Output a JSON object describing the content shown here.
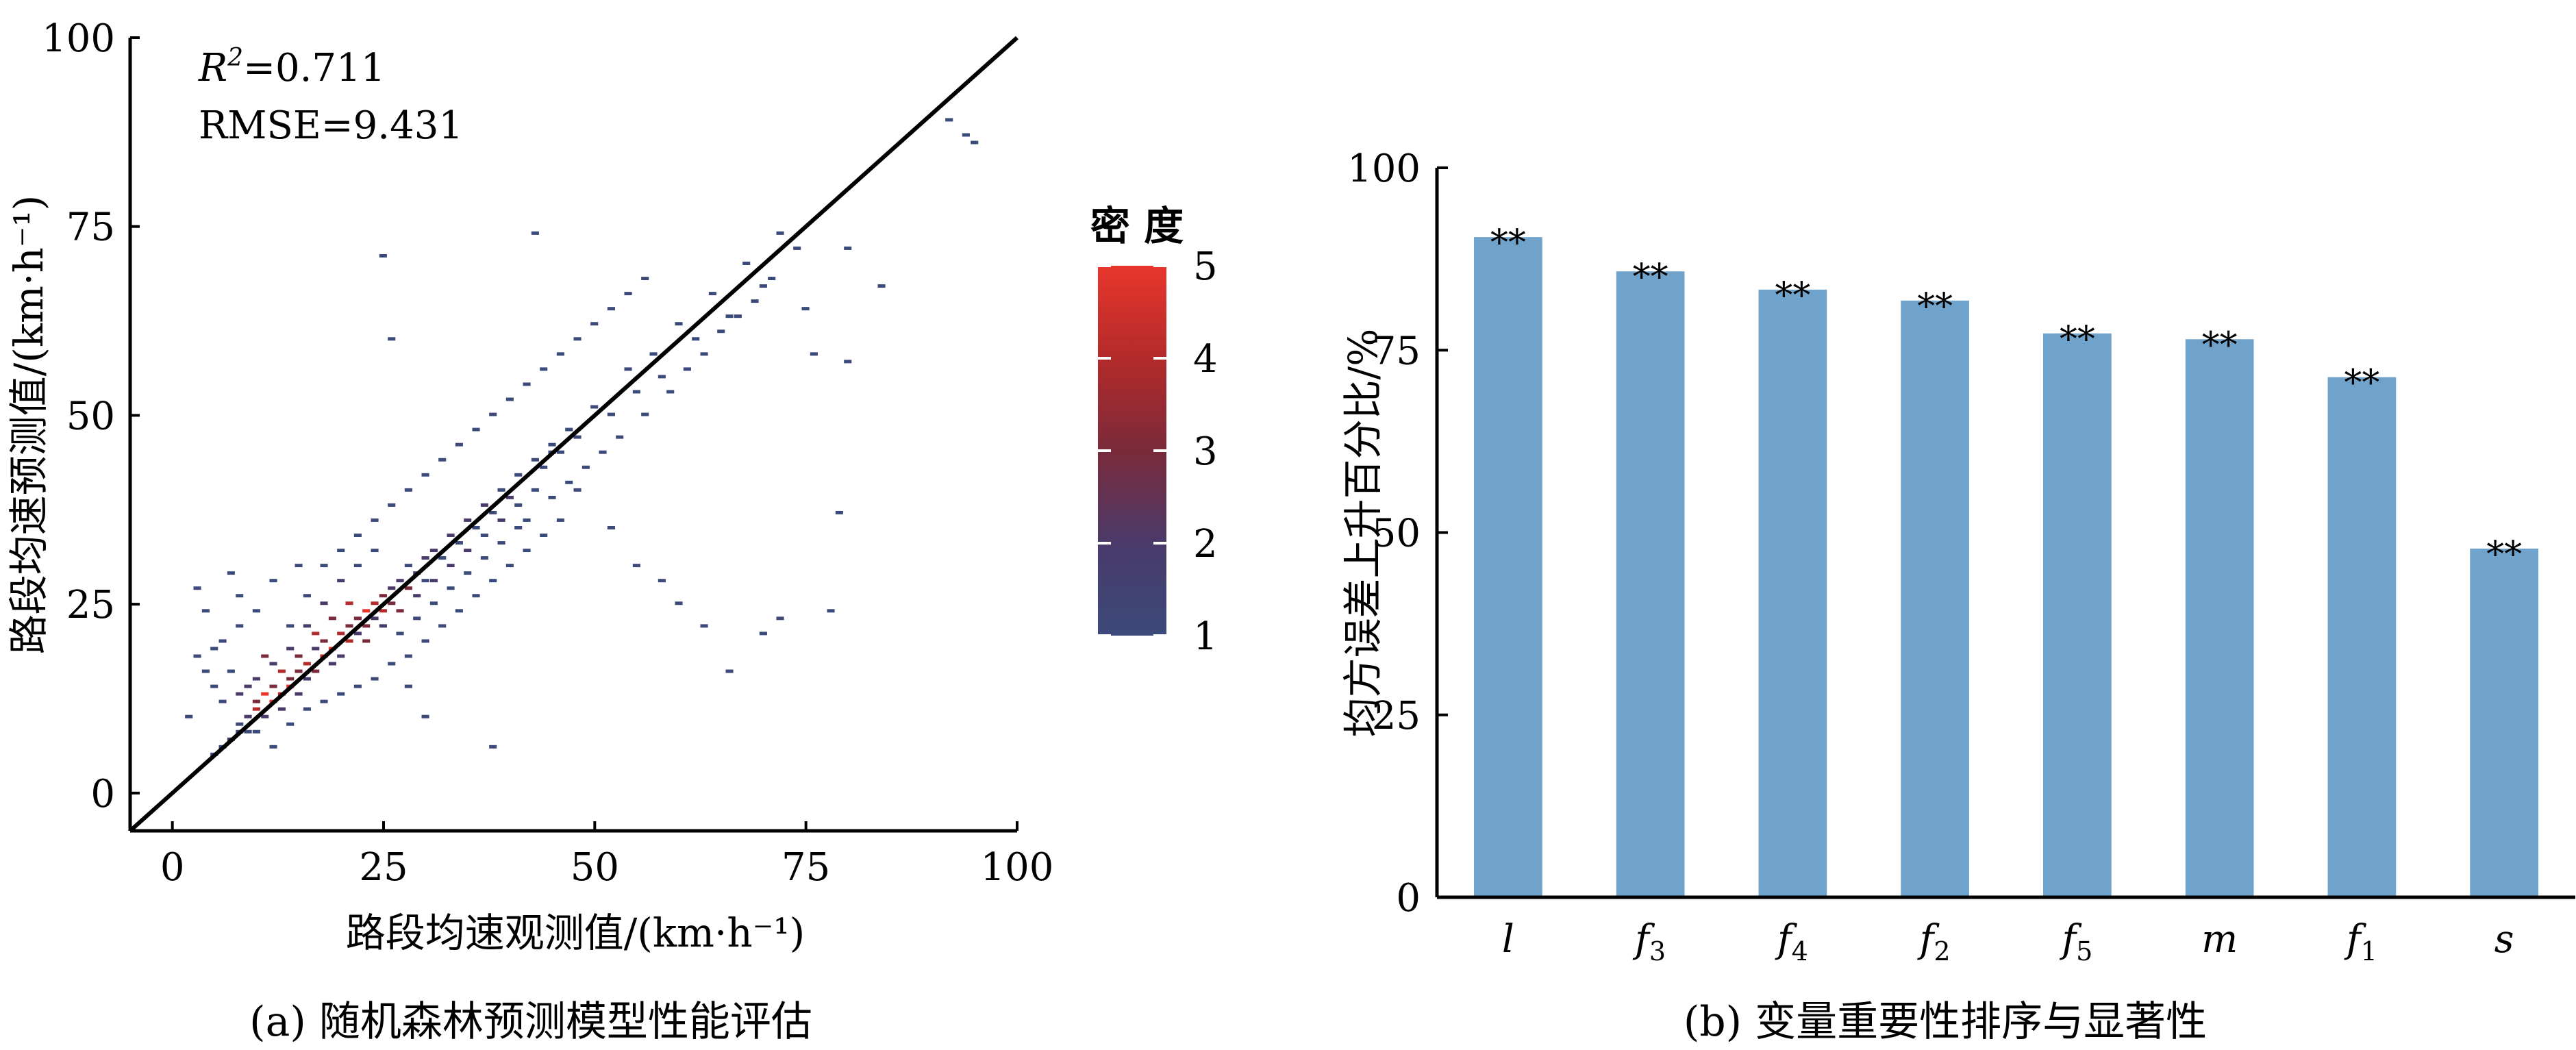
{
  "chart_data": [
    {
      "panel": "a",
      "type": "heatmap",
      "caption": "(a) 随机森林预测模型性能评估",
      "xlabel": "路段均速观测值/(km·h⁻¹)",
      "ylabel": "路段均速预测值/(km·h⁻¹)",
      "xlim": [
        -5,
        100
      ],
      "ylim": [
        -5,
        100
      ],
      "xticks": [
        "0",
        "25",
        "50",
        "75",
        "100"
      ],
      "yticks": [
        "0",
        "25",
        "50",
        "75",
        "100"
      ],
      "reference_line": {
        "from": [
          -5,
          -5
        ],
        "to": [
          100,
          100
        ]
      },
      "annotations": {
        "r2": "R²=0.711",
        "rmse": "RMSE=9.431"
      },
      "colorbar": {
        "title": "密 度",
        "range": [
          1,
          5
        ],
        "ticks": [
          "1",
          "2",
          "3",
          "4",
          "5"
        ],
        "colors": [
          "#3b4a7a",
          "#4a3a6a",
          "#7a2a3a",
          "#b32a2a",
          "#e8362c"
        ]
      },
      "cells": [
        [
          5,
          5,
          1
        ],
        [
          6,
          6,
          1
        ],
        [
          7,
          7,
          2
        ],
        [
          8,
          9,
          1
        ],
        [
          8,
          8,
          1
        ],
        [
          9,
          10,
          2
        ],
        [
          9,
          8,
          1
        ],
        [
          10,
          12,
          3
        ],
        [
          10,
          11,
          4
        ],
        [
          11,
          13,
          5
        ],
        [
          11,
          10,
          2
        ],
        [
          12,
          12,
          5
        ],
        [
          12,
          14,
          3
        ],
        [
          13,
          13,
          4
        ],
        [
          13,
          11,
          2
        ],
        [
          14,
          15,
          3
        ],
        [
          14,
          14,
          5
        ],
        [
          15,
          13,
          2
        ],
        [
          15,
          16,
          3
        ],
        [
          16,
          17,
          4
        ],
        [
          16,
          15,
          2
        ],
        [
          17,
          16,
          3
        ],
        [
          17,
          19,
          2
        ],
        [
          18,
          18,
          4
        ],
        [
          18,
          20,
          3
        ],
        [
          19,
          17,
          2
        ],
        [
          19,
          19,
          5
        ],
        [
          20,
          21,
          4
        ],
        [
          20,
          18,
          2
        ],
        [
          21,
          22,
          3
        ],
        [
          21,
          20,
          4
        ],
        [
          22,
          23,
          3
        ],
        [
          22,
          21,
          2
        ],
        [
          23,
          24,
          5
        ],
        [
          23,
          22,
          3
        ],
        [
          24,
          25,
          4
        ],
        [
          24,
          23,
          2
        ],
        [
          25,
          26,
          3
        ],
        [
          25,
          24,
          4
        ],
        [
          26,
          27,
          2
        ],
        [
          26,
          25,
          3
        ],
        [
          27,
          28,
          2
        ],
        [
          28,
          27,
          3
        ],
        [
          28,
          30,
          1
        ],
        [
          29,
          29,
          2
        ],
        [
          30,
          31,
          2
        ],
        [
          30,
          28,
          1
        ],
        [
          31,
          32,
          2
        ],
        [
          32,
          31,
          1
        ],
        [
          33,
          34,
          2
        ],
        [
          34,
          33,
          1
        ],
        [
          35,
          36,
          2
        ],
        [
          36,
          35,
          1
        ],
        [
          37,
          38,
          2
        ],
        [
          38,
          37,
          1
        ],
        [
          39,
          40,
          1
        ],
        [
          40,
          39,
          2
        ],
        [
          41,
          42,
          1
        ],
        [
          42,
          36,
          1
        ],
        [
          43,
          44,
          1
        ],
        [
          44,
          43,
          1
        ],
        [
          45,
          46,
          1
        ],
        [
          46,
          45,
          1
        ],
        [
          47,
          48,
          1
        ],
        [
          48,
          47,
          1
        ],
        [
          50,
          51,
          1
        ],
        [
          52,
          50,
          1
        ],
        [
          54,
          56,
          1
        ],
        [
          55,
          53,
          1
        ],
        [
          57,
          58,
          1
        ],
        [
          58,
          55,
          1
        ],
        [
          60,
          62,
          1
        ],
        [
          62,
          60,
          1
        ],
        [
          64,
          66,
          1
        ],
        [
          66,
          63,
          1
        ],
        [
          68,
          70,
          1
        ],
        [
          70,
          67,
          1
        ],
        [
          72,
          74,
          1
        ],
        [
          74,
          72,
          1
        ],
        [
          92,
          89,
          1
        ],
        [
          94,
          87,
          1
        ],
        [
          95,
          86,
          1
        ],
        [
          3,
          27,
          1
        ],
        [
          4,
          24,
          1
        ],
        [
          3,
          18,
          1
        ],
        [
          5,
          14,
          1
        ],
        [
          7,
          29,
          1
        ],
        [
          8,
          22,
          1
        ],
        [
          6,
          12,
          1
        ],
        [
          10,
          24,
          1
        ],
        [
          12,
          28,
          1
        ],
        [
          14,
          22,
          1
        ],
        [
          15,
          30,
          1
        ],
        [
          16,
          26,
          1
        ],
        [
          18,
          30,
          1
        ],
        [
          20,
          32,
          1
        ],
        [
          22,
          34,
          1
        ],
        [
          24,
          36,
          1
        ],
        [
          26,
          38,
          1
        ],
        [
          28,
          40,
          1
        ],
        [
          30,
          42,
          1
        ],
        [
          32,
          44,
          1
        ],
        [
          34,
          46,
          1
        ],
        [
          36,
          48,
          1
        ],
        [
          38,
          50,
          1
        ],
        [
          40,
          52,
          1
        ],
        [
          42,
          54,
          1
        ],
        [
          44,
          56,
          1
        ],
        [
          46,
          58,
          1
        ],
        [
          48,
          60,
          1
        ],
        [
          50,
          62,
          1
        ],
        [
          52,
          64,
          1
        ],
        [
          54,
          66,
          1
        ],
        [
          56,
          68,
          1
        ],
        [
          25,
          71,
          1
        ],
        [
          26,
          60,
          1
        ],
        [
          43,
          74,
          1
        ],
        [
          45,
          45,
          1
        ],
        [
          48,
          40,
          1
        ],
        [
          52,
          35,
          1
        ],
        [
          55,
          30,
          1
        ],
        [
          58,
          28,
          1
        ],
        [
          60,
          25,
          1
        ],
        [
          63,
          22,
          1
        ],
        [
          66,
          16,
          1
        ],
        [
          70,
          21,
          1
        ],
        [
          72,
          23,
          1
        ],
        [
          78,
          24,
          1
        ],
        [
          79,
          37,
          1
        ],
        [
          80,
          57,
          1
        ],
        [
          76,
          58,
          1
        ],
        [
          75,
          64,
          1
        ],
        [
          80,
          72,
          1
        ],
        [
          84,
          67,
          1
        ],
        [
          10,
          8,
          1
        ],
        [
          12,
          6,
          1
        ],
        [
          14,
          9,
          1
        ],
        [
          16,
          11,
          1
        ],
        [
          18,
          12,
          1
        ],
        [
          20,
          13,
          1
        ],
        [
          22,
          14,
          1
        ],
        [
          24,
          15,
          1
        ],
        [
          26,
          17,
          1
        ],
        [
          28,
          18,
          1
        ],
        [
          30,
          20,
          1
        ],
        [
          32,
          22,
          1
        ],
        [
          34,
          24,
          1
        ],
        [
          36,
          26,
          1
        ],
        [
          38,
          28,
          1
        ],
        [
          40,
          30,
          1
        ],
        [
          42,
          32,
          1
        ],
        [
          44,
          34,
          1
        ],
        [
          46,
          36,
          1
        ],
        [
          38,
          6,
          1
        ],
        [
          30,
          10,
          1
        ],
        [
          28,
          14,
          1
        ],
        [
          2,
          10,
          1
        ],
        [
          4,
          16,
          1
        ],
        [
          6,
          20,
          1
        ],
        [
          8,
          26,
          1
        ],
        [
          11,
          18,
          3
        ],
        [
          13,
          16,
          4
        ],
        [
          15,
          18,
          3
        ],
        [
          17,
          21,
          4
        ],
        [
          19,
          23,
          3
        ],
        [
          21,
          25,
          4
        ],
        [
          23,
          20,
          3
        ],
        [
          25,
          22,
          2
        ],
        [
          27,
          24,
          3
        ],
        [
          29,
          26,
          2
        ],
        [
          31,
          28,
          2
        ],
        [
          33,
          30,
          2
        ],
        [
          35,
          32,
          2
        ],
        [
          37,
          34,
          1
        ],
        [
          39,
          36,
          2
        ],
        [
          41,
          38,
          1
        ],
        [
          43,
          40,
          1
        ],
        [
          9,
          14,
          2
        ],
        [
          7,
          16,
          1
        ],
        [
          5,
          19,
          1
        ],
        [
          20,
          28,
          2
        ],
        [
          22,
          30,
          1
        ],
        [
          24,
          32,
          1
        ],
        [
          18,
          25,
          2
        ],
        [
          16,
          22,
          2
        ],
        [
          14,
          19,
          2
        ],
        [
          12,
          17,
          2
        ],
        [
          10,
          15,
          2
        ],
        [
          8,
          13,
          2
        ],
        [
          27,
          21,
          1
        ],
        [
          29,
          23,
          1
        ],
        [
          31,
          25,
          1
        ],
        [
          33,
          27,
          1
        ],
        [
          35,
          29,
          1
        ],
        [
          37,
          31,
          1
        ],
        [
          39,
          33,
          1
        ],
        [
          41,
          35,
          1
        ],
        [
          45,
          39,
          1
        ],
        [
          47,
          41,
          1
        ],
        [
          49,
          43,
          1
        ],
        [
          51,
          45,
          1
        ],
        [
          53,
          47,
          1
        ],
        [
          56,
          50,
          1
        ],
        [
          59,
          53,
          1
        ],
        [
          61,
          56,
          1
        ],
        [
          63,
          58,
          1
        ],
        [
          65,
          61,
          1
        ],
        [
          67,
          63,
          1
        ],
        [
          69,
          65,
          1
        ],
        [
          71,
          68,
          1
        ]
      ]
    },
    {
      "panel": "b",
      "type": "bar",
      "caption": "(b) 变量重要性排序与显著性",
      "ylabel": "均方误差上升百分比/%",
      "ylim": [
        0,
        100
      ],
      "yticks": [
        "0",
        "25",
        "50",
        "75",
        "100"
      ],
      "bar_color": "#6fa3cb",
      "bars": [
        {
          "base": "l",
          "sub": "",
          "value": 90.5,
          "sig": "**"
        },
        {
          "base": "f",
          "sub": "3",
          "value": 85.8,
          "sig": "**"
        },
        {
          "base": "f",
          "sub": "4",
          "value": 83.3,
          "sig": "**"
        },
        {
          "base": "f",
          "sub": "2",
          "value": 81.8,
          "sig": "**"
        },
        {
          "base": "f",
          "sub": "5",
          "value": 77.3,
          "sig": "**"
        },
        {
          "base": "m",
          "sub": "",
          "value": 76.5,
          "sig": "**"
        },
        {
          "base": "f",
          "sub": "1",
          "value": 71.3,
          "sig": "**"
        },
        {
          "base": "s",
          "sub": "",
          "value": 47.8,
          "sig": "**"
        }
      ]
    }
  ]
}
